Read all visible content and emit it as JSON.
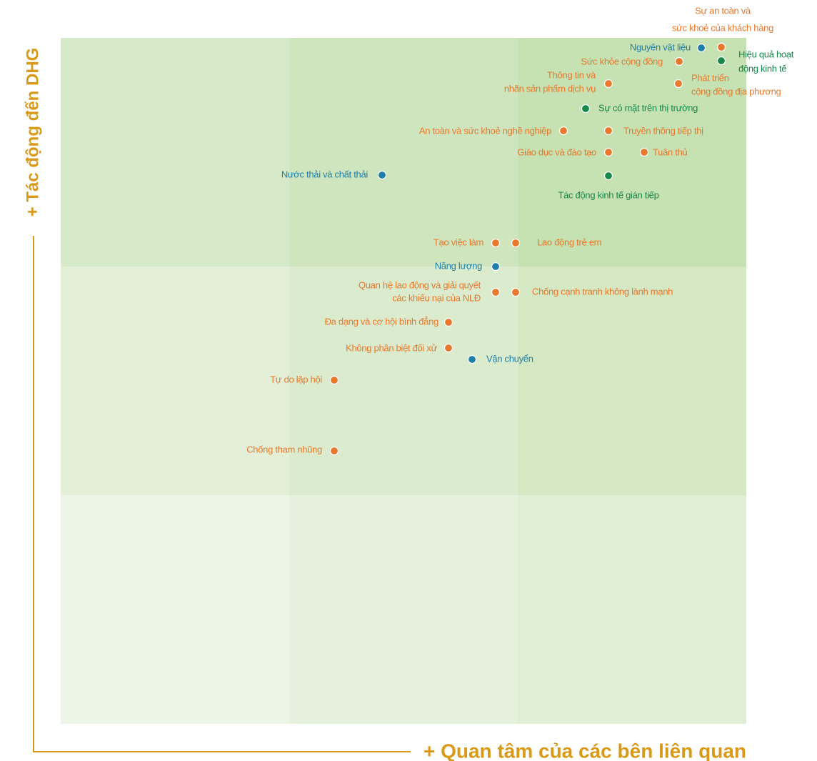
{
  "axes": {
    "y": "+ Tác động đến DHG",
    "x": "+ Quan tâm của các bên liên quan"
  },
  "items": [
    {
      "lines": [
        "Sự an toàn và",
        "sức khoẻ của khách hàng"
      ],
      "color": "#e8782c"
    },
    {
      "lines": [
        "Nguyên vật liệu"
      ],
      "color": "#1f7fa8"
    },
    {
      "lines": [
        "Hiệu quả hoạt",
        "động kinh tế"
      ],
      "color": "#17874a"
    },
    {
      "lines": [
        "Sức khỏe cộng đồng"
      ],
      "color": "#e8782c"
    },
    {
      "lines": [
        "Thông tin và",
        "nhãn sản phẩm dịch vụ"
      ],
      "color": "#e8782c"
    },
    {
      "lines": [
        "Phát triển",
        "cộng đồng địa phương"
      ],
      "color": "#e8782c"
    },
    {
      "lines": [
        "Sự có mặt trên thị trường"
      ],
      "color": "#17874a"
    },
    {
      "lines": [
        "An toàn và sức khoẻ nghề nghiệp"
      ],
      "color": "#e8782c"
    },
    {
      "lines": [
        "Truyền thông tiếp thị"
      ],
      "color": "#e8782c"
    },
    {
      "lines": [
        "Giáo dục và đào tạo"
      ],
      "color": "#e8782c"
    },
    {
      "lines": [
        "Tuân thủ"
      ],
      "color": "#e8782c"
    },
    {
      "lines": [
        "Nước thải và chất thải"
      ],
      "color": "#1f7fa8"
    },
    {
      "lines": [
        "Tác động kinh tế gián tiếp"
      ],
      "color": "#17874a"
    },
    {
      "lines": [
        "Tạo việc làm"
      ],
      "color": "#e8782c"
    },
    {
      "lines": [
        "Lao động trẻ em"
      ],
      "color": "#e8782c"
    },
    {
      "lines": [
        "Năng lượng"
      ],
      "color": "#1f7fa8"
    },
    {
      "lines": [
        "Quan hệ lao động và giải quyết",
        "các khiếu nại của NLĐ"
      ],
      "color": "#e8782c"
    },
    {
      "lines": [
        "Chống cạnh tranh không lành mạnh"
      ],
      "color": "#e8782c"
    },
    {
      "lines": [
        "Đa dạng và cơ hội bình đẳng"
      ],
      "color": "#e8782c"
    },
    {
      "lines": [
        "Không phân biệt đối xử"
      ],
      "color": "#e8782c"
    },
    {
      "lines": [
        "Vận chuyển"
      ],
      "color": "#1f7fa8"
    },
    {
      "lines": [
        "Tự do lập hội"
      ],
      "color": "#e8782c"
    },
    {
      "lines": [
        "Chống tham nhũng"
      ],
      "color": "#e8782c"
    }
  ]
}
